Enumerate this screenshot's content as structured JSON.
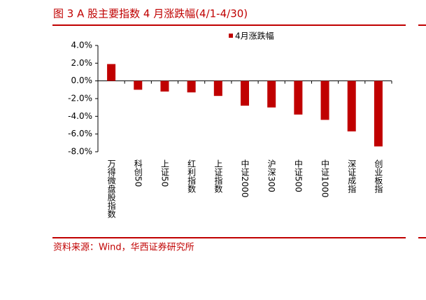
{
  "chart_data": {
    "type": "bar",
    "title": "图 3 A 股主要指数 4 月涨跌幅(4/1-4/30)",
    "source": "资料来源：Wind，华西证券研究所",
    "categories": [
      "万得微盘股指数",
      "科创50",
      "上证50",
      "红利指数",
      "上证指数",
      "中证2000",
      "沪深300",
      "中证500",
      "中证1000",
      "深证成指",
      "创业板指"
    ],
    "series": [
      {
        "name": "4月涨跌幅",
        "color": "#c00000",
        "values": [
          1.9,
          -1.0,
          -1.2,
          -1.3,
          -1.7,
          -2.8,
          -3.0,
          -3.8,
          -4.4,
          -5.7,
          -7.4
        ]
      }
    ],
    "ylim": [
      -8,
      4
    ],
    "yticks": [
      {
        "value": 4,
        "label": "4.0%"
      },
      {
        "value": 2,
        "label": "2.0%"
      },
      {
        "value": 0,
        "label": "0.0%"
      },
      {
        "value": -2,
        "label": "-2.0%"
      },
      {
        "value": -4,
        "label": "-4.0%"
      },
      {
        "value": -6,
        "label": "-6.0%"
      },
      {
        "value": -8,
        "label": "-8.0%"
      }
    ],
    "grid": false,
    "legend": "top"
  }
}
